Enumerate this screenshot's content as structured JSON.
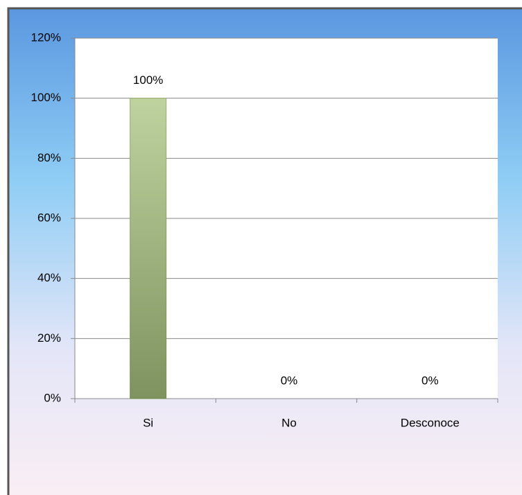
{
  "chart_data": {
    "type": "bar",
    "categories": [
      "Si",
      "No",
      "Desconoce"
    ],
    "values": [
      100,
      0,
      0
    ],
    "value_labels": [
      "100%",
      "0%",
      "0%"
    ],
    "color": "#a9c47f",
    "ylim": [
      0,
      120
    ],
    "yticks": [
      {
        "value": 0,
        "label": "0%"
      },
      {
        "value": 20,
        "label": "20%"
      },
      {
        "value": 40,
        "label": "40%"
      },
      {
        "value": 60,
        "label": "60%"
      },
      {
        "value": 80,
        "label": "80%"
      },
      {
        "value": 100,
        "label": "100%"
      },
      {
        "value": 120,
        "label": "120%"
      }
    ],
    "grid": true
  }
}
